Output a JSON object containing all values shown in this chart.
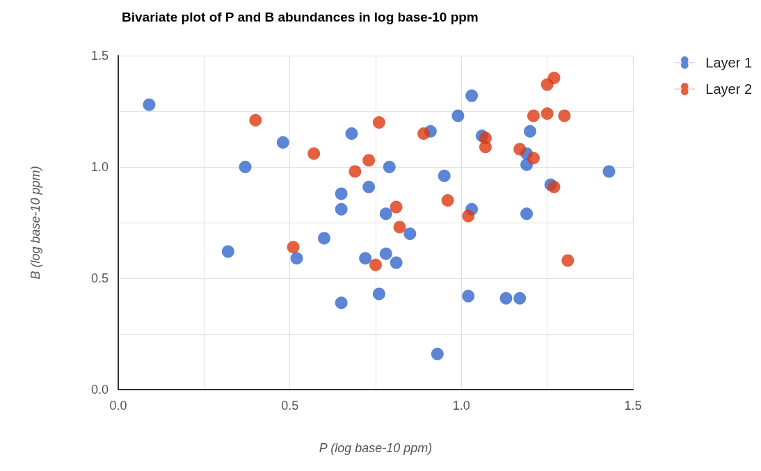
{
  "chart_data": {
    "type": "scatter",
    "title": "Bivariate plot of P and B abundances in log base-10 ppm",
    "xlabel": "P (log base-10 ppm)",
    "ylabel": "B (log base-10 ppm)",
    "xlim": [
      0,
      1.5
    ],
    "ylim": [
      0,
      1.5
    ],
    "xticks": [
      {
        "value": 0,
        "label": "0.0"
      },
      {
        "value": 0.25,
        "label": null
      },
      {
        "value": 0.5,
        "label": "0.5"
      },
      {
        "value": 0.75,
        "label": null
      },
      {
        "value": 1,
        "label": "1.0"
      },
      {
        "value": 1.25,
        "label": null
      },
      {
        "value": 1.5,
        "label": "1.5"
      }
    ],
    "yticks": [
      {
        "value": 0,
        "label": "0.0"
      },
      {
        "value": 0.25,
        "label": null
      },
      {
        "value": 0.5,
        "label": "0.5"
      },
      {
        "value": 0.75,
        "label": null
      },
      {
        "value": 1,
        "label": "1.0"
      },
      {
        "value": 1.25,
        "label": null
      },
      {
        "value": 1.5,
        "label": "1.5"
      }
    ],
    "grid": true,
    "legend": "right",
    "marker": "circle",
    "series": [
      {
        "name": "Layer 1",
        "color": "#3366cc",
        "x": [
          0.09,
          0.32,
          0.37,
          0.48,
          0.52,
          0.6,
          0.65,
          0.65,
          0.65,
          0.68,
          0.73,
          0.72,
          0.76,
          0.78,
          0.78,
          0.79,
          0.81,
          0.85,
          0.91,
          0.93,
          0.95,
          0.99,
          1.02,
          1.03,
          1.03,
          1.06,
          1.13,
          1.17,
          1.19,
          1.19,
          1.19,
          1.2,
          1.26,
          1.43
        ],
        "values": [
          1.28,
          0.62,
          1.0,
          1.11,
          0.59,
          0.68,
          0.88,
          0.81,
          0.39,
          1.15,
          0.91,
          0.59,
          0.43,
          0.79,
          0.61,
          1.0,
          0.57,
          0.7,
          1.16,
          0.16,
          0.96,
          1.23,
          0.42,
          0.81,
          1.32,
          1.14,
          0.41,
          0.41,
          1.06,
          1.01,
          0.79,
          1.16,
          0.92,
          0.98
        ]
      },
      {
        "name": "Layer 2",
        "color": "#dc3912",
        "x": [
          0.4,
          0.51,
          0.57,
          0.69,
          0.73,
          0.76,
          0.75,
          0.81,
          0.82,
          0.89,
          0.96,
          1.02,
          1.07,
          1.07,
          1.17,
          1.21,
          1.21,
          1.25,
          1.25,
          1.27,
          1.27,
          1.3,
          1.31
        ],
        "values": [
          1.21,
          0.64,
          1.06,
          0.98,
          1.03,
          1.2,
          0.56,
          0.82,
          0.73,
          1.15,
          0.85,
          0.78,
          1.13,
          1.09,
          1.08,
          1.04,
          1.23,
          1.24,
          1.37,
          1.4,
          0.91,
          1.23,
          0.58
        ]
      }
    ]
  }
}
